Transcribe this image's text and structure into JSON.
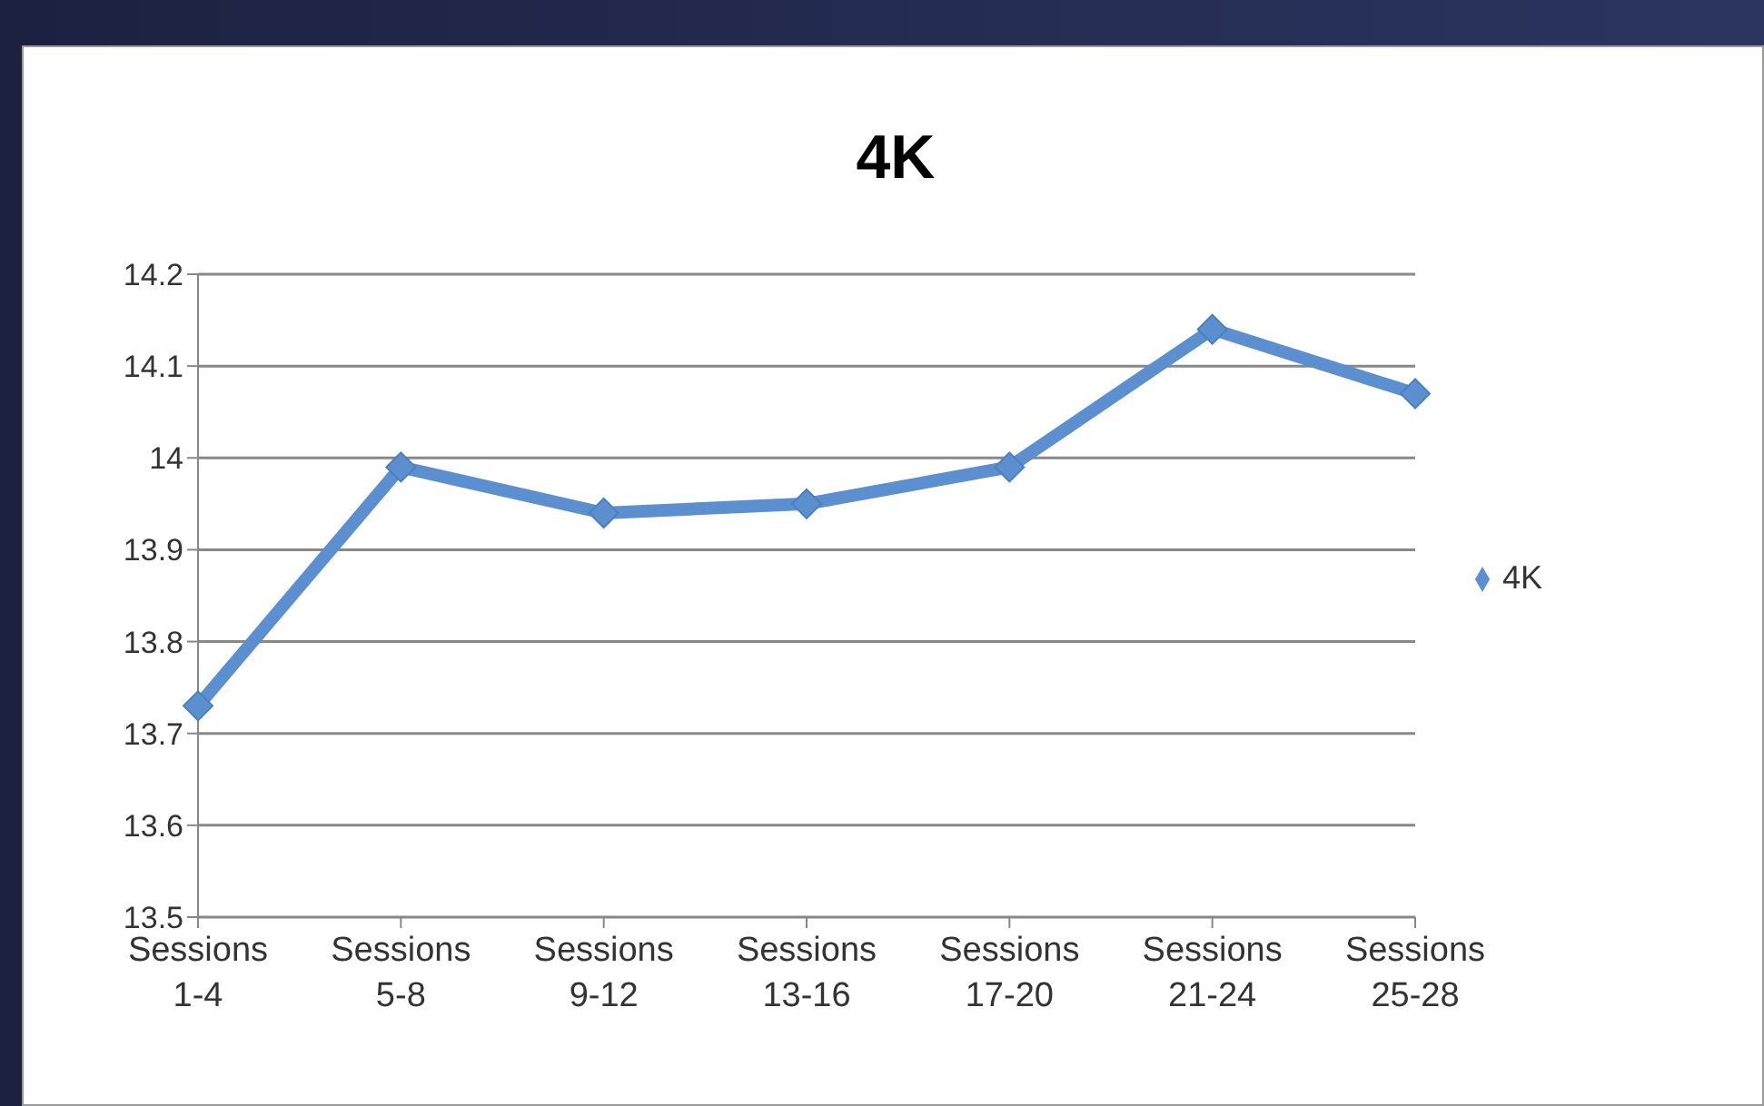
{
  "chart_data": {
    "type": "line",
    "title": "4K",
    "categories": [
      "Sessions 1-4",
      "Sessions 5-8",
      "Sessions 9-12",
      "Sessions 13-16",
      "Sessions 17-20",
      "Sessions 21-24",
      "Sessions 25-28"
    ],
    "series": [
      {
        "name": "4K",
        "color": "#5b8fd0",
        "values": [
          13.73,
          13.99,
          13.94,
          13.95,
          13.99,
          14.14,
          14.07
        ]
      }
    ],
    "ylim": [
      13.5,
      14.2
    ],
    "yticks": [
      13.5,
      13.6,
      13.7,
      13.8,
      13.9,
      14,
      14.1,
      14.2
    ],
    "grid": "y",
    "legend": "right",
    "marker": "diamond",
    "line_style": "solid"
  }
}
